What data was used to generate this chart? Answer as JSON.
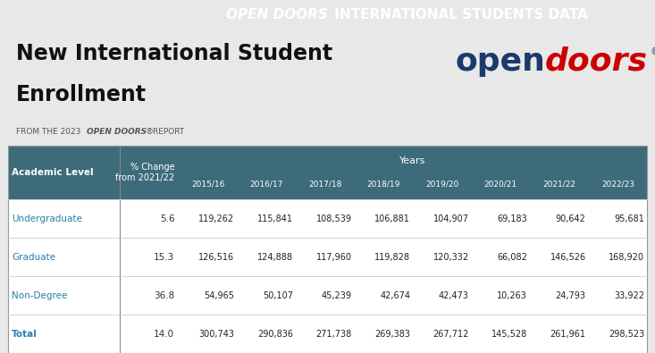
{
  "header_bg": "#1a3a6b",
  "header_text_color": "#ffffff",
  "main_title_line1": "New International Student",
  "main_title_line2": "Enrollment",
  "logo_open_color": "#1a3a6b",
  "logo_doors_color": "#cc0000",
  "body_bg": "#e8e8e8",
  "table_header_bg": "#3d6b7a",
  "table_row_bg_white": "#ffffff",
  "table_border_color": "#cccccc",
  "col_label_left": "Academic Level",
  "col_label_pct": "% Change\nfrom 2021/22",
  "col_label_years": "Years",
  "year_cols": [
    "2015/16",
    "2016/17",
    "2017/18",
    "2018/19",
    "2019/20",
    "2020/21",
    "2021/22",
    "2022/23"
  ],
  "rows": [
    {
      "label": "Undergraduate",
      "pct": "5.6",
      "values": [
        "119,262",
        "115,841",
        "108,539",
        "106,881",
        "104,907",
        "69,183",
        "90,642",
        "95,681"
      ],
      "label_color": "#2a7fa8",
      "bold": false
    },
    {
      "label": "Graduate",
      "pct": "15.3",
      "values": [
        "126,516",
        "124,888",
        "117,960",
        "119,828",
        "120,332",
        "66,082",
        "146,526",
        "168,920"
      ],
      "label_color": "#2a7fa8",
      "bold": false
    },
    {
      "label": "Non-Degree",
      "pct": "36.8",
      "values": [
        "54,965",
        "50,107",
        "45,239",
        "42,674",
        "42,473",
        "10,263",
        "24,793",
        "33,922"
      ],
      "label_color": "#2a7fa8",
      "bold": false
    },
    {
      "label": "Total",
      "pct": "14.0",
      "values": [
        "300,743",
        "290,836",
        "271,738",
        "269,383",
        "267,712",
        "145,528",
        "261,961",
        "298,523"
      ],
      "label_color": "#2a7fa8",
      "bold": true
    }
  ]
}
